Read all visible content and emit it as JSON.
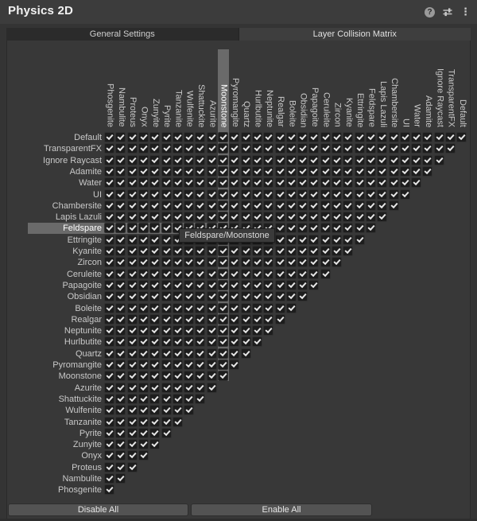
{
  "window": {
    "title": "Physics 2D"
  },
  "header_icons": {
    "help_glyph": "?",
    "kebab_glyph": "⋮"
  },
  "tabs": [
    {
      "label": "General Settings",
      "selected": false
    },
    {
      "label": "Layer Collision Matrix",
      "selected": true
    }
  ],
  "matrix": {
    "row_labels": [
      "Default",
      "TransparentFX",
      "Ignore Raycast",
      "Adamite",
      "Water",
      "UI",
      "Chambersite",
      "Lapis Lazuli",
      "Feldspare",
      "Ettringite",
      "Kyanite",
      "Zircon",
      "Ceruleite",
      "Papagoite",
      "Obsidian",
      "Boleite",
      "Realgar",
      "Neptunite",
      "Hurlbutite",
      "Quartz",
      "Pyromangite",
      "Moonstone",
      "Azurite",
      "Shattuckite",
      "Wulfenite",
      "Tanzanite",
      "Pyrite",
      "Zunyite",
      "Onyx",
      "Proteus",
      "Nambulite",
      "Phosgenite"
    ],
    "column_labels": [
      "Phosgenite",
      "Nambulite",
      "Proteus",
      "Onyx",
      "Zunyite",
      "Pyrite",
      "Tanzanite",
      "Wulfenite",
      "Shattuckite",
      "Azurite",
      "Moonstone",
      "Pyromangite",
      "Quartz",
      "Hurlbutite",
      "Neptunite",
      "Realgar",
      "Boleite",
      "Obsidian",
      "Papagoite",
      "Ceruleite",
      "Zircon",
      "Kyanite",
      "Ettringite",
      "Feldspare",
      "Lapis Lazuli",
      "Chambersite",
      "UI",
      "Water",
      "Adamite",
      "Ignore Raycast",
      "TransparentFX",
      "Default"
    ],
    "triangular": true,
    "all_checked": true,
    "hover": {
      "row": "Feldspare",
      "column": "Moonstone",
      "tooltip": "Feldspare/Moonstone"
    }
  },
  "footer_buttons": [
    {
      "label": "Disable All"
    },
    {
      "label": "Enable All"
    }
  ],
  "colors": {
    "panel_bg": "#383838",
    "titlebar_bg": "#3c3c3c",
    "highlight_strip": "#6a6a6a",
    "checkbox_bg": "#1d1d1d",
    "checkmark": "#e6e6e6",
    "tab_unselected_bg": "#2b2b2b",
    "tab_selected_bg": "#3e3e3e",
    "button_bg": "#535353",
    "label_text": "#c9c9c9"
  }
}
